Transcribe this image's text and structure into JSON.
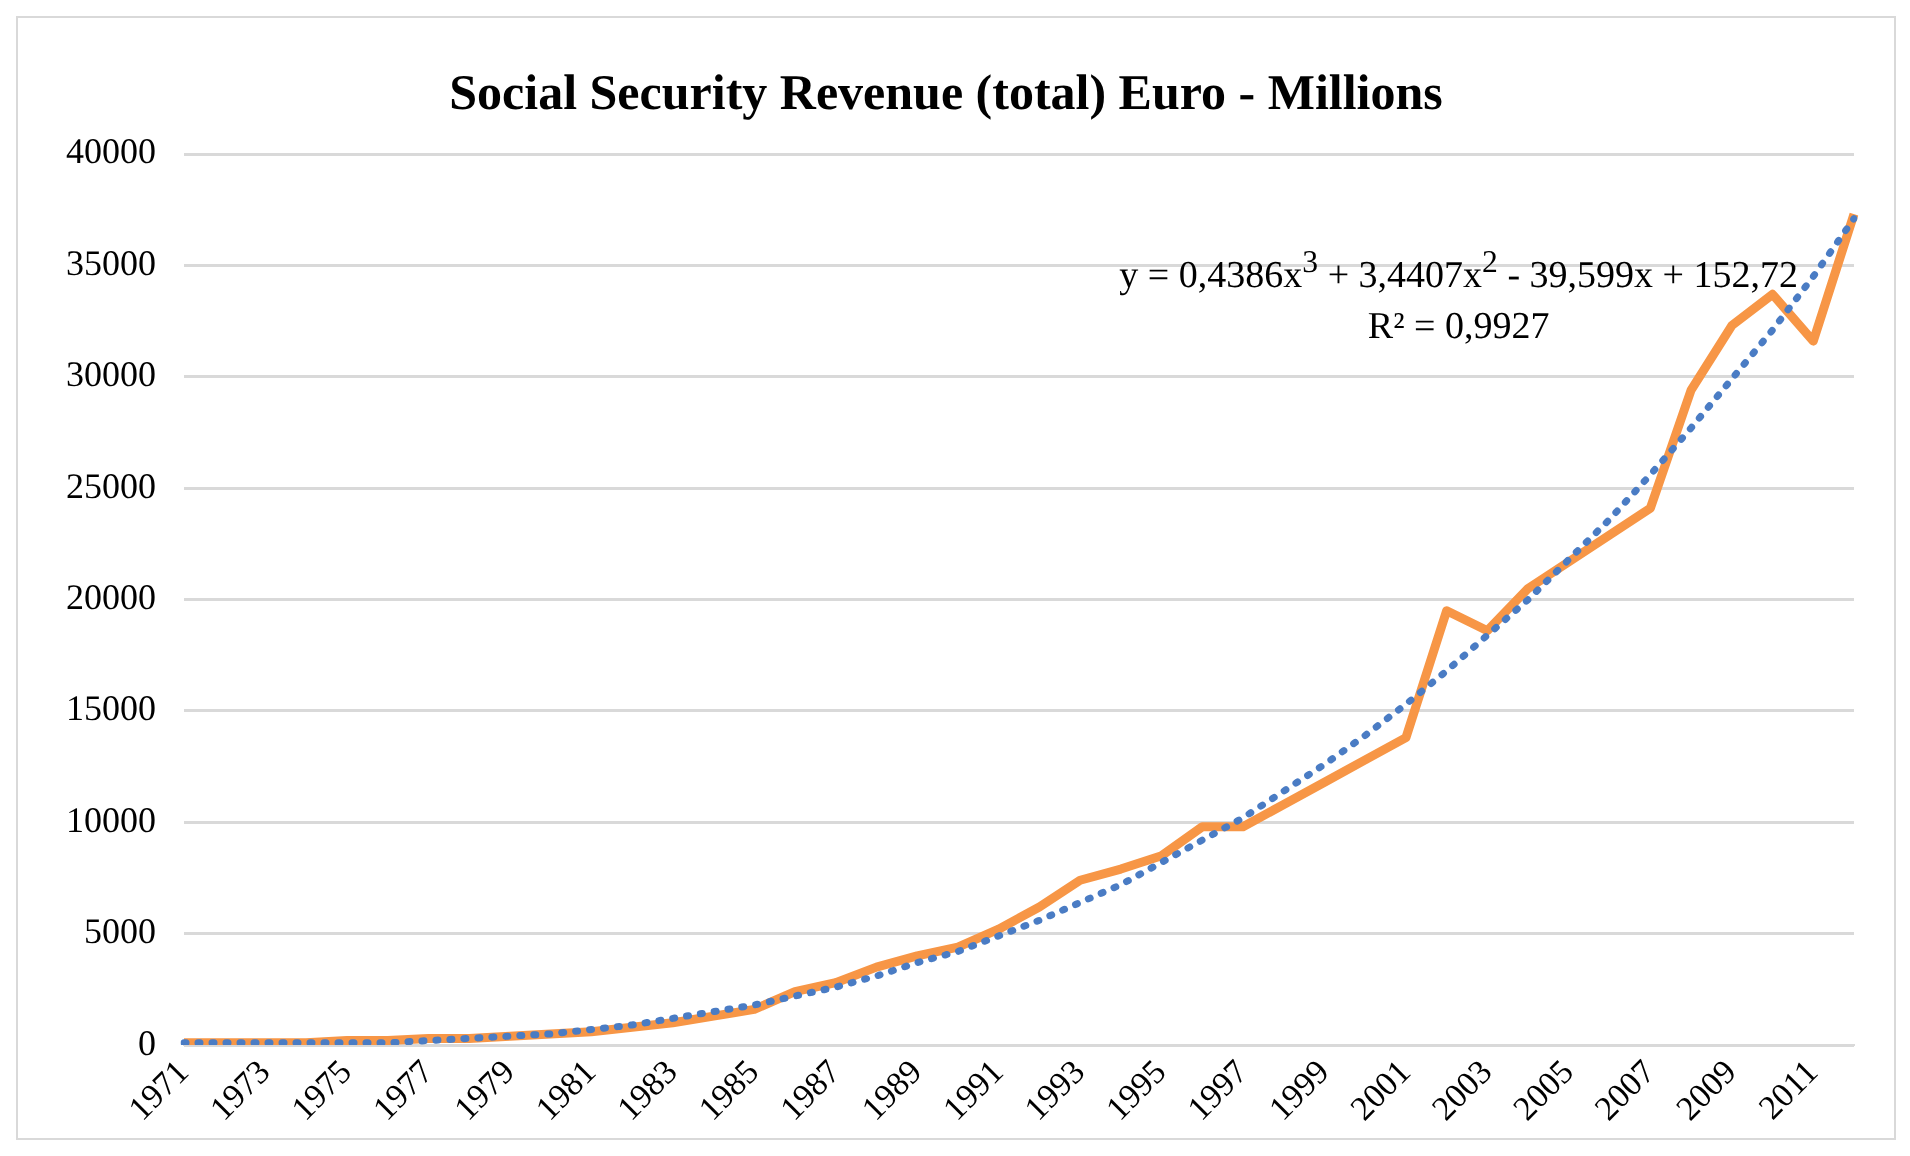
{
  "chart_data": {
    "type": "line",
    "title": "Social Security Revenue (total) Euro - Millions",
    "categories": [
      "1971",
      null,
      "1973",
      null,
      "1975",
      null,
      "1977",
      null,
      "1979",
      null,
      "1981",
      null,
      "1983",
      null,
      "1985",
      null,
      "1987",
      null,
      "1989",
      null,
      "1991",
      null,
      "1993",
      null,
      "1995",
      null,
      "1997",
      null,
      "1999",
      null,
      "2001",
      null,
      "2003",
      null,
      "2005",
      null,
      "2007",
      null,
      "2009",
      null,
      "2011",
      null
    ],
    "series": [
      {
        "color": "#f79646",
        "line_style": "solid",
        "values": [
          100,
          100,
          100,
          100,
          200,
          200,
          300,
          300,
          400,
          500,
          600,
          800,
          1000,
          1300,
          1600,
          2400,
          2800,
          3500,
          4000,
          4400,
          5200,
          6200,
          7400,
          7900,
          8500,
          9800,
          9800,
          10800,
          11800,
          12800,
          13800,
          19500,
          18600,
          20500,
          21700,
          22900,
          24100,
          29400,
          32300,
          33700,
          31600,
          37300
        ]
      },
      {
        "color": "#4a7cc4",
        "line_style": "dotted",
        "values": [
          100,
          100,
          100,
          100,
          100,
          100,
          200,
          300,
          400,
          500,
          700,
          900,
          1200,
          1500,
          1800,
          2200,
          2600,
          3100,
          3700,
          4200,
          4900,
          5600,
          6400,
          7200,
          8200,
          9200,
          10200,
          11400,
          12600,
          13900,
          15300,
          16800,
          18400,
          20000,
          21800,
          23600,
          25600,
          27700,
          29900,
          32100,
          34500,
          37100
        ]
      }
    ],
    "ylim": [
      0,
      40000
    ],
    "yticks": [
      0,
      5000,
      10000,
      15000,
      20000,
      25000,
      30000,
      35000,
      40000
    ],
    "grid": "y",
    "legend": false,
    "marker": "none",
    "annotations": [
      "y = 0,4386x$^{3}$ + 3,4407x$^{2}$ - 39,599x + 152,72",
      "R² = 0,9927"
    ]
  }
}
